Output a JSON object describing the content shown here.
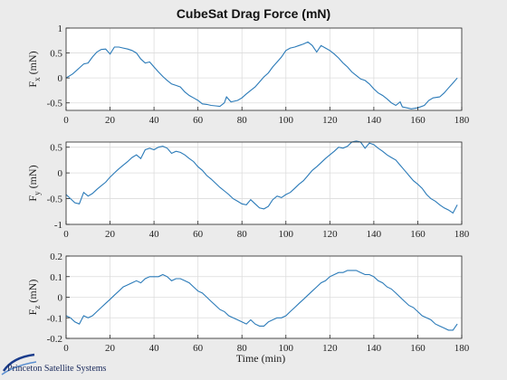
{
  "chart_data": {
    "type": "line",
    "title": "CubeSat Drag Force (mN)",
    "xlabel": "Time (min)",
    "xlim": [
      0,
      180
    ],
    "xticks": [
      0,
      20,
      40,
      60,
      80,
      100,
      120,
      140,
      160,
      180
    ],
    "grid": true,
    "line_color": "#2a7ab8",
    "subplots": [
      {
        "ylabel_main": "F",
        "ylabel_sub": "x",
        "ylabel_unit": "(mN)",
        "ylim": [
          -0.65,
          1.0
        ],
        "yticks": [
          -0.5,
          0,
          0.5,
          1
        ],
        "ytick_labels": [
          "-0.5",
          "0",
          "0.5",
          "1"
        ],
        "x": [
          0,
          3,
          6,
          8,
          10,
          12,
          14,
          16,
          18,
          20,
          22,
          24,
          26,
          28,
          30,
          32,
          34,
          36,
          38,
          40,
          42,
          44,
          46,
          48,
          50,
          52,
          54,
          56,
          58,
          60,
          62,
          64,
          66,
          68,
          70,
          72,
          73,
          75,
          78,
          80,
          82,
          84,
          86,
          88,
          90,
          92,
          94,
          96,
          98,
          100,
          102,
          104,
          106,
          108,
          110,
          112,
          114,
          116,
          118,
          120,
          122,
          124,
          126,
          128,
          130,
          132,
          134,
          136,
          138,
          140,
          142,
          144,
          146,
          148,
          150,
          152,
          153,
          155,
          157,
          160,
          163,
          165,
          167,
          170,
          172,
          174,
          176,
          178
        ],
        "y": [
          0,
          0.08,
          0.2,
          0.28,
          0.3,
          0.42,
          0.52,
          0.57,
          0.58,
          0.48,
          0.62,
          0.62,
          0.6,
          0.58,
          0.55,
          0.5,
          0.38,
          0.3,
          0.32,
          0.22,
          0.12,
          0.03,
          -0.05,
          -0.12,
          -0.15,
          -0.18,
          -0.28,
          -0.35,
          -0.4,
          -0.45,
          -0.52,
          -0.53,
          -0.55,
          -0.56,
          -0.57,
          -0.5,
          -0.38,
          -0.48,
          -0.45,
          -0.4,
          -0.32,
          -0.25,
          -0.18,
          -0.08,
          0.02,
          0.1,
          0.22,
          0.32,
          0.42,
          0.55,
          0.6,
          0.62,
          0.65,
          0.68,
          0.72,
          0.65,
          0.52,
          0.65,
          0.6,
          0.55,
          0.48,
          0.4,
          0.3,
          0.22,
          0.12,
          0.05,
          -0.02,
          -0.05,
          -0.12,
          -0.22,
          -0.3,
          -0.35,
          -0.42,
          -0.5,
          -0.55,
          -0.48,
          -0.58,
          -0.6,
          -0.62,
          -0.6,
          -0.55,
          -0.45,
          -0.4,
          -0.38,
          -0.3,
          -0.2,
          -0.1,
          0
        ]
      },
      {
        "ylabel_main": "F",
        "ylabel_sub": "y",
        "ylabel_unit": "(mN)",
        "ylim": [
          -1.0,
          0.6
        ],
        "yticks": [
          -1,
          -0.5,
          0,
          0.5
        ],
        "ytick_labels": [
          "-1",
          "-0.5",
          "0",
          "0.5"
        ],
        "x": [
          0,
          2,
          4,
          6,
          8,
          10,
          12,
          14,
          16,
          18,
          20,
          22,
          24,
          26,
          28,
          30,
          32,
          34,
          36,
          38,
          40,
          42,
          44,
          46,
          48,
          50,
          52,
          54,
          56,
          58,
          60,
          62,
          64,
          66,
          68,
          70,
          72,
          74,
          76,
          78,
          80,
          82,
          84,
          86,
          88,
          90,
          92,
          94,
          96,
          98,
          100,
          102,
          104,
          106,
          108,
          110,
          112,
          114,
          116,
          118,
          120,
          122,
          124,
          126,
          128,
          130,
          132,
          134,
          136,
          138,
          140,
          142,
          144,
          146,
          148,
          150,
          152,
          154,
          156,
          158,
          160,
          162,
          164,
          166,
          168,
          170,
          172,
          174,
          176,
          178
        ],
        "y": [
          -0.42,
          -0.5,
          -0.58,
          -0.6,
          -0.38,
          -0.45,
          -0.4,
          -0.32,
          -0.25,
          -0.18,
          -0.08,
          0.0,
          0.08,
          0.15,
          0.22,
          0.3,
          0.35,
          0.28,
          0.45,
          0.48,
          0.45,
          0.5,
          0.52,
          0.48,
          0.38,
          0.42,
          0.4,
          0.35,
          0.28,
          0.22,
          0.12,
          0.05,
          -0.05,
          -0.12,
          -0.2,
          -0.28,
          -0.35,
          -0.42,
          -0.5,
          -0.55,
          -0.6,
          -0.62,
          -0.52,
          -0.6,
          -0.68,
          -0.7,
          -0.65,
          -0.52,
          -0.45,
          -0.48,
          -0.42,
          -0.38,
          -0.3,
          -0.22,
          -0.15,
          -0.05,
          0.05,
          0.12,
          0.2,
          0.28,
          0.35,
          0.42,
          0.5,
          0.48,
          0.52,
          0.6,
          0.62,
          0.6,
          0.48,
          0.58,
          0.55,
          0.48,
          0.42,
          0.35,
          0.3,
          0.25,
          0.15,
          0.05,
          -0.05,
          -0.15,
          -0.22,
          -0.3,
          -0.42,
          -0.5,
          -0.55,
          -0.62,
          -0.68,
          -0.72,
          -0.78,
          -0.62
        ]
      },
      {
        "ylabel_main": "F",
        "ylabel_sub": "z",
        "ylabel_unit": "(mN)",
        "ylim": [
          -0.2,
          0.2
        ],
        "yticks": [
          -0.2,
          -0.1,
          0,
          0.1,
          0.2
        ],
        "ytick_labels": [
          "-0.2",
          "-0.1",
          "0",
          "0.1",
          "0.2"
        ],
        "x": [
          0,
          2,
          4,
          6,
          8,
          10,
          12,
          14,
          16,
          18,
          20,
          22,
          24,
          26,
          28,
          30,
          32,
          34,
          36,
          38,
          40,
          42,
          44,
          46,
          48,
          50,
          52,
          54,
          56,
          58,
          60,
          62,
          64,
          66,
          68,
          70,
          72,
          74,
          76,
          78,
          80,
          82,
          84,
          86,
          88,
          90,
          92,
          94,
          96,
          98,
          100,
          102,
          104,
          106,
          108,
          110,
          112,
          114,
          116,
          118,
          120,
          122,
          124,
          126,
          128,
          130,
          132,
          134,
          136,
          138,
          140,
          142,
          144,
          146,
          148,
          150,
          152,
          154,
          156,
          158,
          160,
          162,
          164,
          166,
          168,
          170,
          172,
          174,
          176,
          178
        ],
        "y": [
          -0.09,
          -0.1,
          -0.12,
          -0.13,
          -0.09,
          -0.1,
          -0.09,
          -0.07,
          -0.05,
          -0.03,
          -0.01,
          0.01,
          0.03,
          0.05,
          0.06,
          0.07,
          0.08,
          0.07,
          0.09,
          0.1,
          0.1,
          0.1,
          0.11,
          0.1,
          0.08,
          0.09,
          0.09,
          0.08,
          0.07,
          0.05,
          0.03,
          0.02,
          0.0,
          -0.02,
          -0.04,
          -0.06,
          -0.07,
          -0.09,
          -0.1,
          -0.11,
          -0.12,
          -0.13,
          -0.11,
          -0.13,
          -0.14,
          -0.14,
          -0.12,
          -0.11,
          -0.1,
          -0.1,
          -0.09,
          -0.07,
          -0.05,
          -0.03,
          -0.01,
          0.01,
          0.03,
          0.05,
          0.07,
          0.08,
          0.1,
          0.11,
          0.12,
          0.12,
          0.13,
          0.13,
          0.13,
          0.12,
          0.11,
          0.11,
          0.1,
          0.08,
          0.07,
          0.05,
          0.04,
          0.02,
          0.0,
          -0.02,
          -0.04,
          -0.05,
          -0.07,
          -0.09,
          -0.1,
          -0.11,
          -0.13,
          -0.14,
          -0.15,
          -0.16,
          -0.16,
          -0.13
        ]
      }
    ]
  },
  "logo": {
    "text": "Princeton Satellite Systems"
  }
}
